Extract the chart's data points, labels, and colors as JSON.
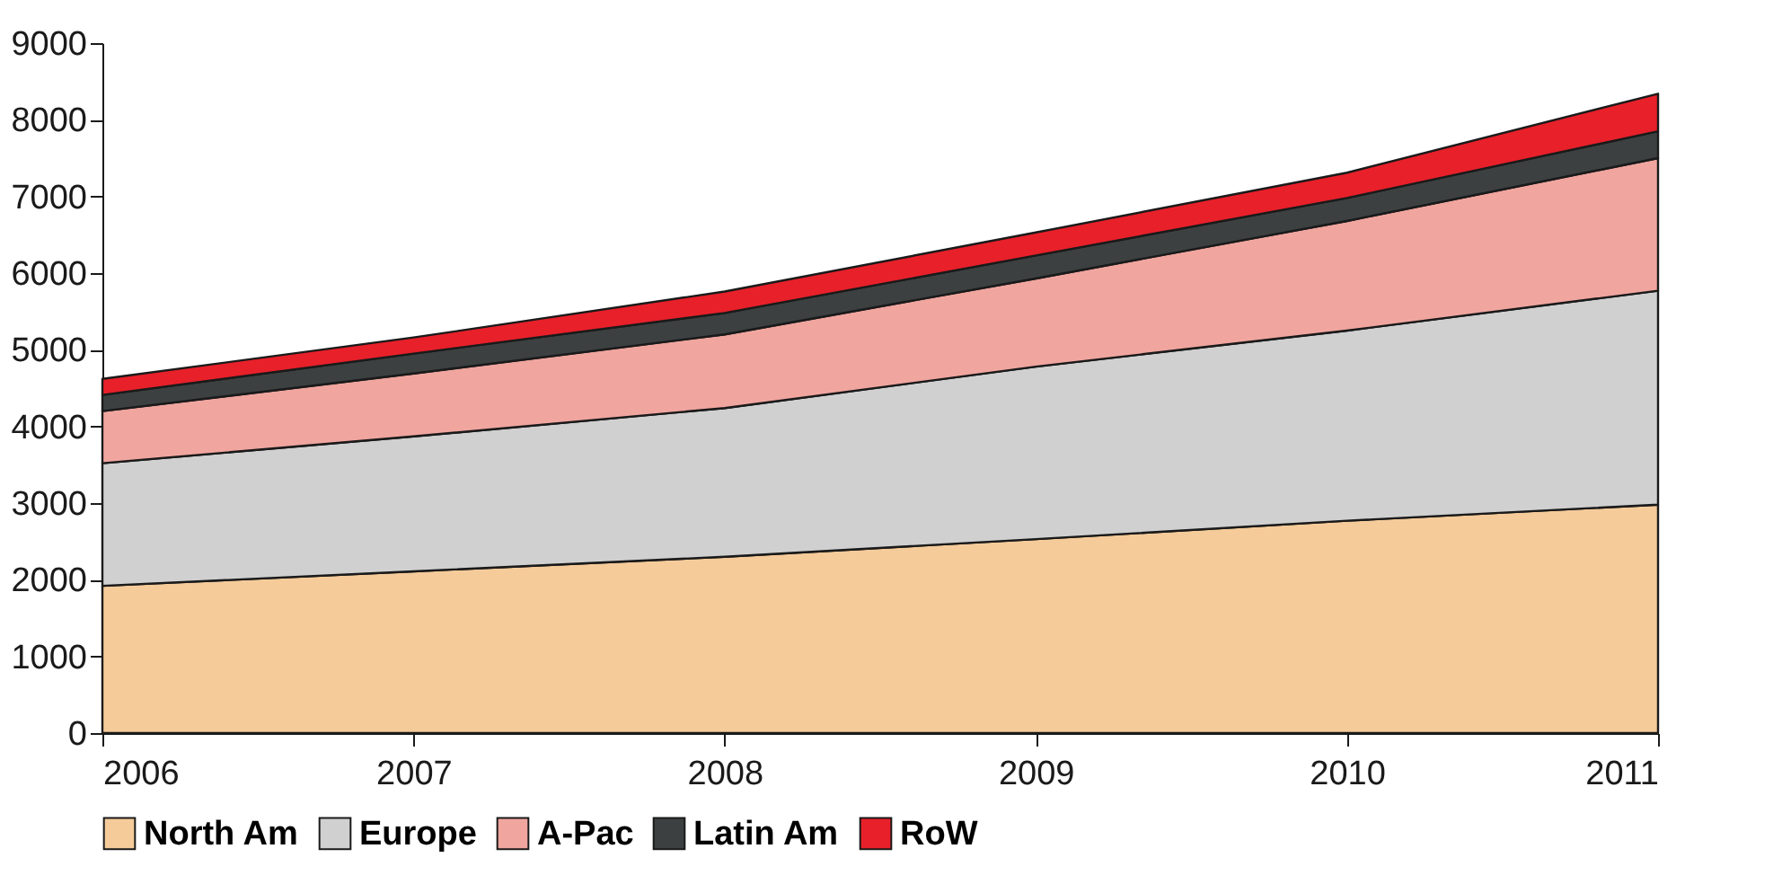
{
  "chart_data": {
    "type": "area",
    "stacked": true,
    "x": [
      2006,
      2007,
      2008,
      2009,
      2010,
      2011
    ],
    "series": [
      {
        "name": "North Am",
        "color": "#f5cb9a",
        "values": [
          1920,
          2110,
          2300,
          2530,
          2770,
          2980
        ]
      },
      {
        "name": "Europe",
        "color": "#d0d0d0",
        "values": [
          1600,
          1760,
          1940,
          2250,
          2480,
          2790
        ]
      },
      {
        "name": "A-Pac",
        "color": "#f0a59f",
        "values": [
          680,
          820,
          960,
          1150,
          1430,
          1730
        ]
      },
      {
        "name": "Latin Am",
        "color": "#3c4040",
        "values": [
          210,
          260,
          280,
          300,
          300,
          350
        ]
      },
      {
        "name": "RoW",
        "color": "#e8202a",
        "values": [
          210,
          210,
          280,
          300,
          330,
          490
        ]
      }
    ],
    "xlim": [
      2006,
      2011
    ],
    "xticks": [
      2006,
      2007,
      2008,
      2009,
      2010,
      2011
    ],
    "ylim": [
      0,
      9000
    ],
    "yticks": [
      0,
      1000,
      2000,
      3000,
      4000,
      5000,
      6000,
      7000,
      8000,
      9000
    ],
    "grid": false,
    "legend": "bottom"
  }
}
